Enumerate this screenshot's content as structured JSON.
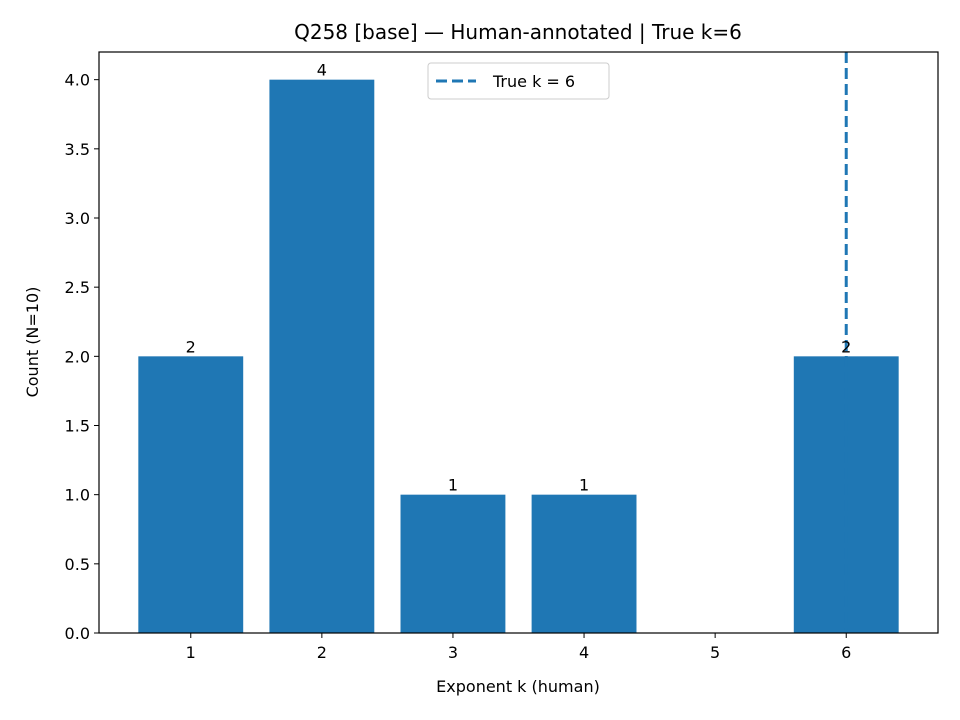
{
  "chart_data": {
    "type": "bar",
    "title": "Q258 [base] — Human-annotated | True k=6",
    "xlabel": "Exponent k (human)",
    "ylabel": "Count (N=10)",
    "categories": [
      "1",
      "2",
      "3",
      "4",
      "5",
      "6"
    ],
    "x": [
      1,
      2,
      3,
      4,
      5,
      6
    ],
    "values": [
      2,
      4,
      1,
      1,
      0,
      2
    ],
    "bar_labels": [
      "2",
      "4",
      "1",
      "1",
      "",
      "2"
    ],
    "xlim": [
      0.3,
      6.7
    ],
    "ylim": [
      0,
      4.2
    ],
    "yticks": [
      0,
      0.5,
      1,
      1.5,
      2,
      2.5,
      3,
      3.5,
      4
    ],
    "ytick_labels": [
      "0.0",
      "0.5",
      "1.0",
      "1.5",
      "2.0",
      "2.5",
      "3.0",
      "3.5",
      "4.0"
    ],
    "bar_color": "#1f77b4",
    "bar_width": 0.8,
    "reference_line": {
      "x": 6,
      "style": "dashed",
      "color": "#1f77b4",
      "label": "True k = 6"
    },
    "legend": {
      "entries": [
        "True k = 6"
      ],
      "placement": "upper center"
    },
    "grid": false
  }
}
